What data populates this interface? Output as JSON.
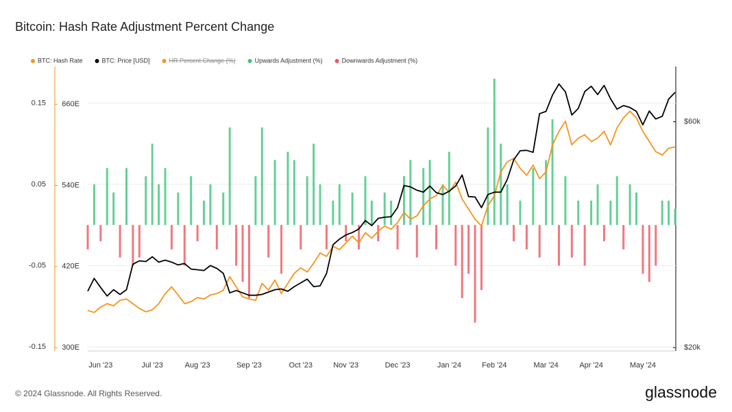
{
  "chart_data": {
    "type": "bar",
    "title": "Bitcoin: Hash Rate Adjustment Percent Change",
    "categories": [
      null,
      null,
      "Jun '23",
      null,
      null,
      null,
      null,
      null,
      null,
      null,
      "Jul '23",
      null,
      null,
      null,
      null,
      null,
      null,
      "Aug '23",
      null,
      null,
      null,
      null,
      null,
      null,
      null,
      "Sep '23",
      null,
      null,
      null,
      null,
      null,
      null,
      null,
      "Oct '23",
      null,
      null,
      null,
      null,
      null,
      null,
      "Nov '23",
      null,
      null,
      null,
      null,
      null,
      null,
      null,
      "Dec '23",
      null,
      null,
      null,
      null,
      null,
      null,
      null,
      "Jan '24",
      null,
      null,
      null,
      null,
      null,
      null,
      "Feb '24",
      null,
      null,
      null,
      null,
      null,
      null,
      null,
      "Mar '24",
      null,
      null,
      null,
      null,
      null,
      null,
      "Apr '24",
      null,
      null,
      null,
      null,
      null,
      null,
      null,
      "May '24",
      null,
      null,
      null,
      null,
      null
    ],
    "ylim": [
      -0.155,
      0.195
    ],
    "yticks": [
      -0.15,
      -0.05,
      0.05,
      0.15
    ],
    "y2lim": [
      295,
      716
    ],
    "y2ticks": [
      {
        "value": 300,
        "label": "300E"
      },
      {
        "value": 420,
        "label": "420E"
      },
      {
        "value": 540,
        "label": "540E"
      },
      {
        "value": 660,
        "label": "660E"
      }
    ],
    "y3lim": [
      19670,
      78500
    ],
    "y3log": true,
    "y3ticks": [
      {
        "value": 20000,
        "label": "$20k"
      },
      {
        "value": 60000,
        "label": "$60k"
      }
    ],
    "grid": true,
    "legend": "top-left",
    "series": [
      {
        "name": "BTC: Hash Rate",
        "color": "#f7931a",
        "type": "line",
        "axis": "y2",
        "values": [
          355,
          352,
          360,
          365,
          362,
          370,
          372,
          365,
          358,
          353,
          356,
          365,
          380,
          390,
          378,
          365,
          368,
          374,
          372,
          378,
          380,
          385,
          405,
          390,
          375,
          372,
          370,
          395,
          385,
          400,
          380,
          395,
          410,
          418,
          412,
          425,
          440,
          435,
          450,
          445,
          455,
          465,
          455,
          470,
          462,
          472,
          480,
          475,
          485,
          500,
          490,
          495,
          510,
          520,
          525,
          540,
          530,
          545,
          520,
          505,
          490,
          480,
          510,
          525,
          560,
          575,
          580,
          565,
          555,
          570,
          550,
          560,
          600,
          620,
          635,
          600,
          610,
          615,
          605,
          610,
          620,
          600,
          625,
          640,
          650,
          640,
          620,
          605,
          590,
          585,
          595,
          597
        ]
      },
      {
        "name": "BTC: Price [USD]",
        "color": "#000000",
        "type": "line",
        "axis": "y3",
        "values": [
          26300,
          28000,
          26800,
          25700,
          26500,
          25900,
          26500,
          30000,
          30500,
          30400,
          31100,
          30300,
          30600,
          30300,
          29900,
          30100,
          29300,
          29200,
          29100,
          29800,
          29400,
          28700,
          26100,
          26400,
          26100,
          25800,
          25800,
          25900,
          26200,
          26500,
          26600,
          26300,
          26900,
          27400,
          27900,
          26900,
          27000,
          28700,
          33000,
          33900,
          34600,
          35000,
          35600,
          37100,
          36200,
          37500,
          37700,
          37800,
          39500,
          44000,
          43700,
          43000,
          42600,
          43900,
          42500,
          42100,
          42800,
          43900,
          46300,
          41700,
          41600,
          39500,
          42100,
          42600,
          42600,
          45300,
          49900,
          52100,
          52200,
          51700,
          62400,
          63100,
          68300,
          72100,
          69400,
          62000,
          64000,
          69500,
          71300,
          68500,
          71600,
          67100,
          63800,
          64900,
          64300,
          63100,
          59100,
          63200,
          60800,
          61600,
          67000,
          69200
        ]
      },
      {
        "name": "HR Percent Change (%)",
        "color": "#f7931a",
        "hidden": true
      },
      {
        "name": "Upwards Adjustment (%)",
        "color": "#3cc47c",
        "type": "bar",
        "values": [
          null,
          0.05,
          null,
          0.07,
          0.04,
          null,
          0.07,
          null,
          null,
          0.06,
          0.1,
          0.05,
          0.07,
          null,
          0.04,
          null,
          0.06,
          null,
          0.03,
          0.05,
          null,
          0.04,
          0.12,
          null,
          null,
          null,
          0.06,
          0.12,
          null,
          0.08,
          null,
          0.09,
          0.08,
          null,
          0.06,
          0.1,
          0.05,
          null,
          0.03,
          0.05,
          null,
          0.04,
          null,
          0.06,
          0.03,
          null,
          0.04,
          0.03,
          null,
          0.06,
          0.08,
          null,
          0.07,
          0.08,
          null,
          0.05,
          0.09,
          null,
          null,
          null,
          null,
          null,
          0.12,
          0.18,
          0.1,
          0.05,
          null,
          0.03,
          null,
          0.07,
          null,
          0.08,
          0.13,
          null,
          0.06,
          null,
          0.03,
          null,
          0.03,
          0.05,
          null,
          0.03,
          0.06,
          null,
          0.05,
          0.04,
          null,
          null,
          null,
          0.03,
          0.03,
          0.02
        ]
      },
      {
        "name": "Downwards Adjustment (%)",
        "color": "#f0545d",
        "type": "bar",
        "values": [
          -0.03,
          null,
          -0.02,
          null,
          null,
          -0.04,
          null,
          -0.05,
          -0.04,
          null,
          null,
          null,
          null,
          -0.03,
          null,
          -0.05,
          null,
          -0.02,
          null,
          null,
          -0.03,
          null,
          null,
          -0.05,
          -0.07,
          -0.09,
          null,
          null,
          -0.04,
          null,
          -0.06,
          null,
          null,
          -0.03,
          null,
          null,
          null,
          -0.03,
          null,
          null,
          -0.02,
          null,
          -0.03,
          null,
          null,
          -0.02,
          null,
          null,
          -0.03,
          null,
          null,
          -0.04,
          null,
          null,
          -0.03,
          null,
          null,
          -0.05,
          -0.09,
          -0.06,
          -0.12,
          -0.08,
          null,
          null,
          null,
          null,
          -0.02,
          null,
          -0.03,
          null,
          -0.04,
          null,
          null,
          -0.05,
          null,
          -0.04,
          null,
          -0.05,
          null,
          null,
          -0.02,
          null,
          null,
          -0.03,
          null,
          null,
          -0.06,
          -0.07,
          -0.05,
          null,
          null,
          null
        ]
      }
    ]
  },
  "footer": "© 2024 Glassnode. All Rights Reserved.",
  "brand": "glassnode"
}
